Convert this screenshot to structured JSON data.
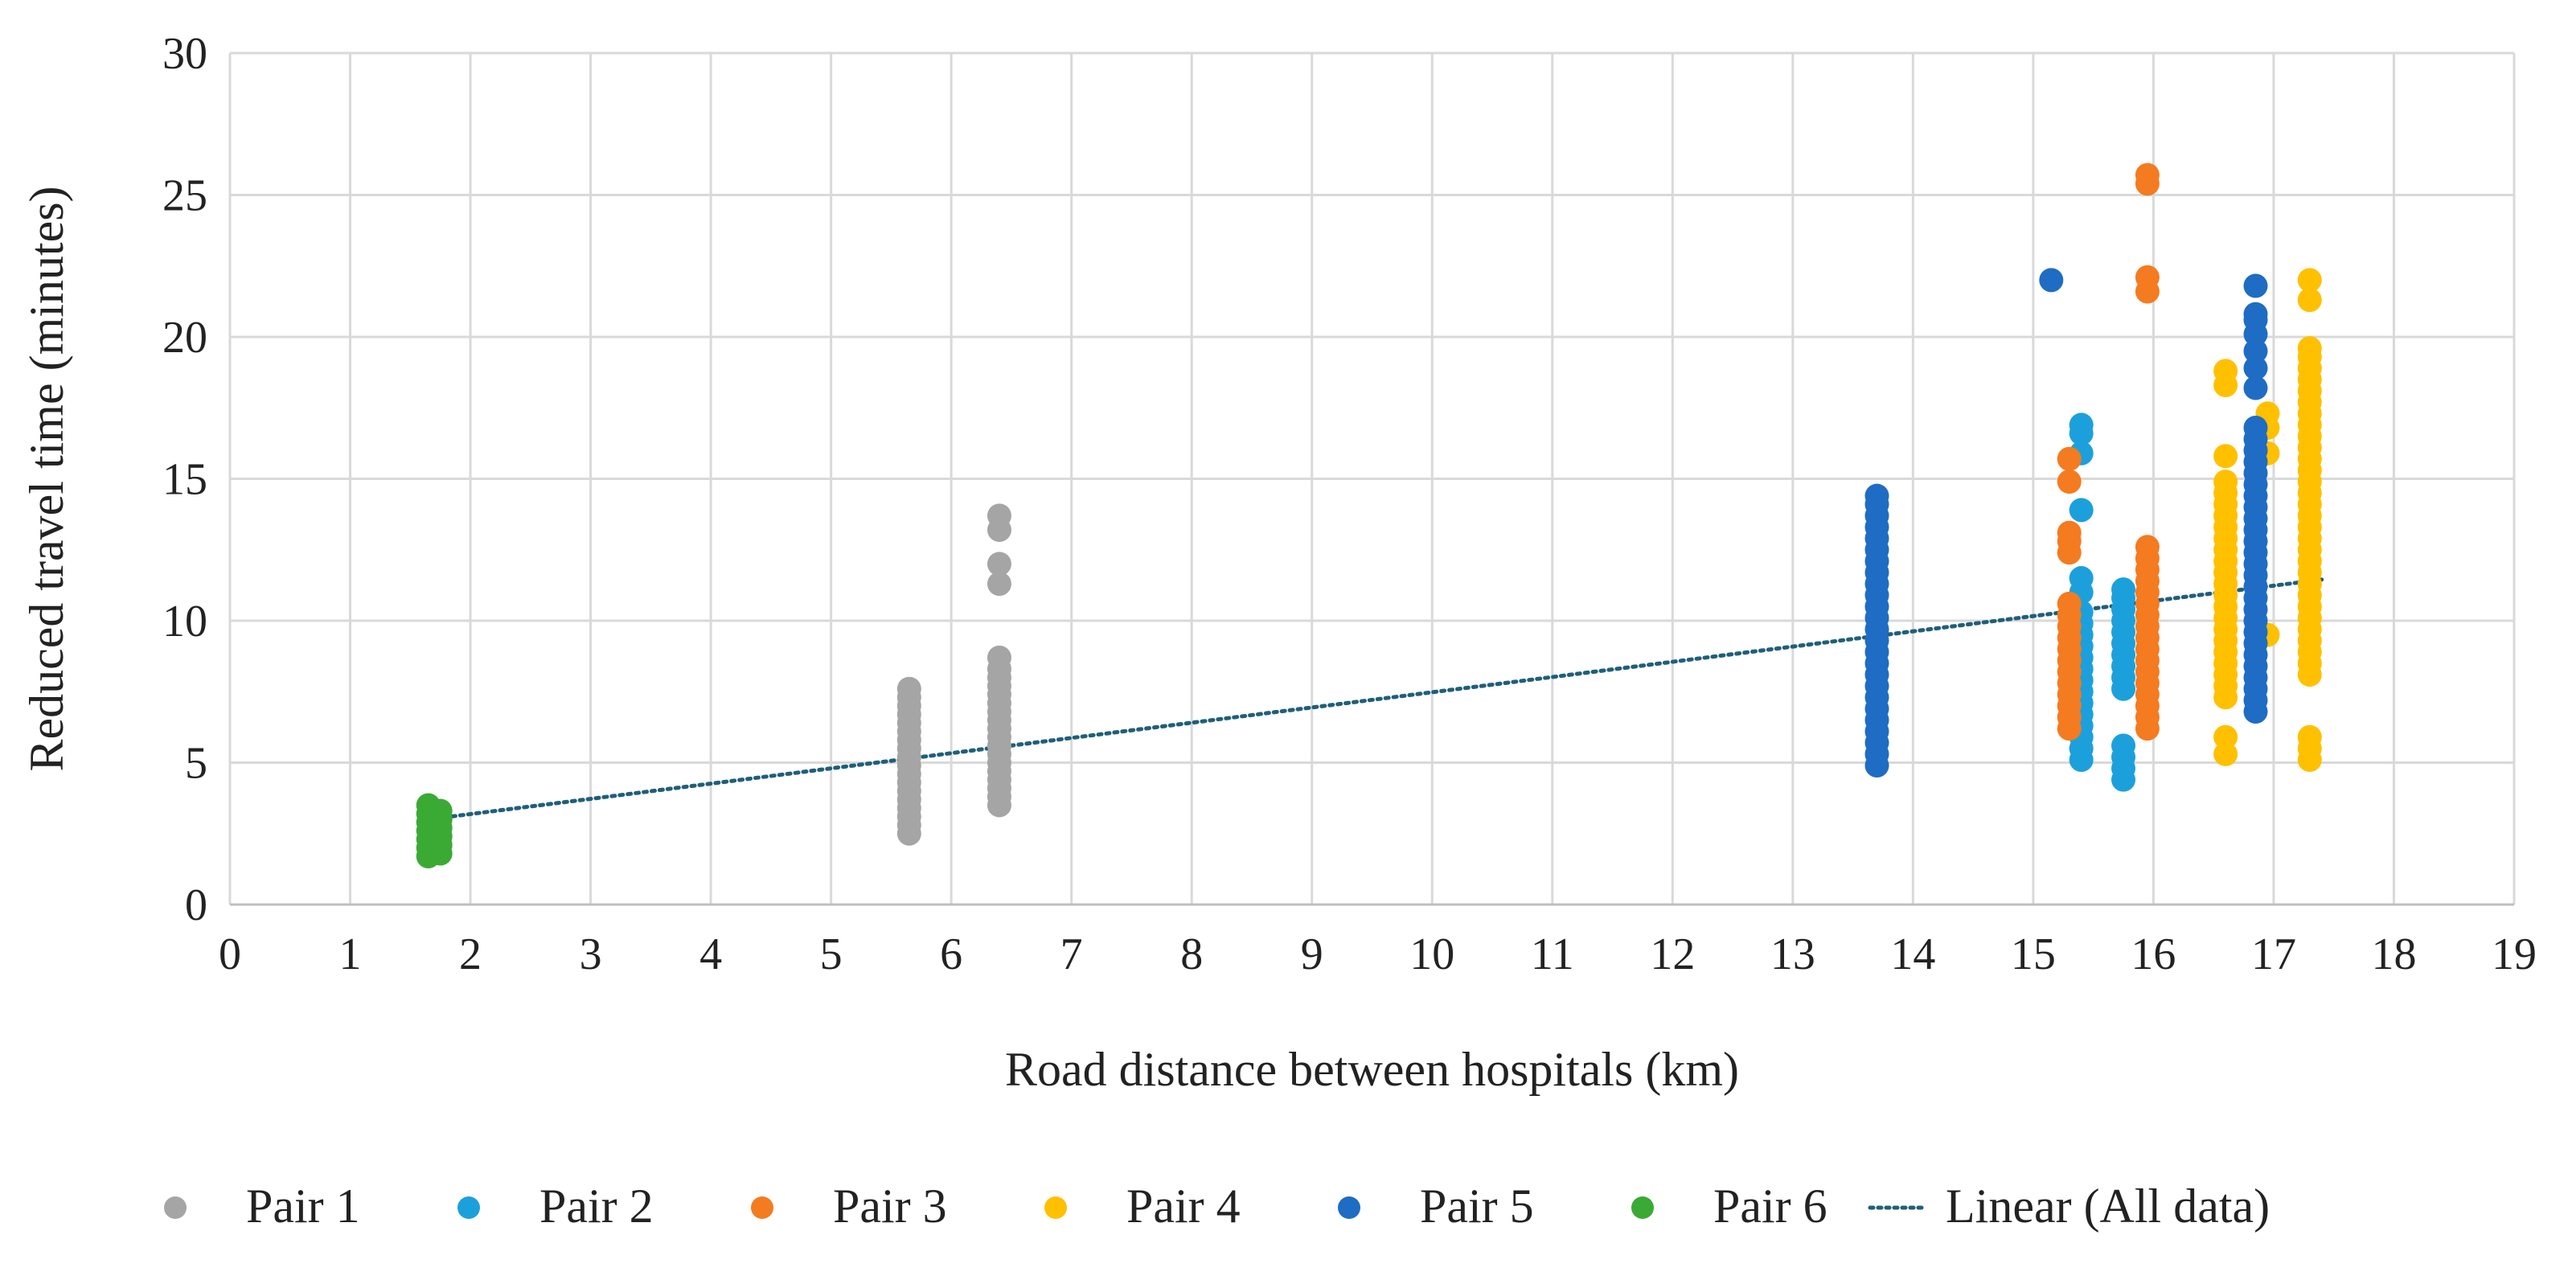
{
  "chart_data": {
    "type": "scatter",
    "title": "",
    "xlabel": "Road distance between hospitals (km)",
    "ylabel": "Reduced travel time (minutes)",
    "xlim": [
      0,
      19
    ],
    "ylim": [
      0,
      30
    ],
    "x_ticks": [
      0,
      1,
      2,
      3,
      4,
      5,
      6,
      7,
      8,
      9,
      10,
      11,
      12,
      13,
      14,
      15,
      16,
      17,
      18,
      19
    ],
    "y_ticks": [
      0,
      5,
      10,
      15,
      20,
      25,
      30
    ],
    "grid": true,
    "legend_position": "bottom",
    "series": [
      {
        "name": "Pair 1",
        "color": "#a5a5a5",
        "points": [
          [
            5.65,
            2.5
          ],
          [
            5.65,
            2.8
          ],
          [
            5.65,
            3.1
          ],
          [
            5.65,
            3.4
          ],
          [
            5.65,
            3.7
          ],
          [
            5.65,
            4.0
          ],
          [
            5.65,
            4.3
          ],
          [
            5.65,
            4.6
          ],
          [
            5.65,
            4.9
          ],
          [
            5.65,
            5.2
          ],
          [
            5.65,
            5.5
          ],
          [
            5.65,
            5.8
          ],
          [
            5.65,
            6.1
          ],
          [
            5.65,
            6.4
          ],
          [
            5.65,
            6.7
          ],
          [
            5.65,
            7.0
          ],
          [
            5.65,
            7.3
          ],
          [
            5.65,
            7.6
          ],
          [
            6.4,
            3.5
          ],
          [
            6.4,
            3.8
          ],
          [
            6.4,
            4.1
          ],
          [
            6.4,
            4.4
          ],
          [
            6.4,
            4.7
          ],
          [
            6.4,
            5.0
          ],
          [
            6.4,
            5.3
          ],
          [
            6.4,
            5.6
          ],
          [
            6.4,
            5.9
          ],
          [
            6.4,
            6.2
          ],
          [
            6.4,
            6.5
          ],
          [
            6.4,
            6.8
          ],
          [
            6.4,
            7.1
          ],
          [
            6.4,
            7.4
          ],
          [
            6.4,
            7.7
          ],
          [
            6.4,
            8.0
          ],
          [
            6.4,
            8.3
          ],
          [
            6.4,
            8.7
          ],
          [
            6.4,
            11.3
          ],
          [
            6.4,
            12.0
          ],
          [
            6.4,
            13.2
          ],
          [
            6.4,
            13.7
          ]
        ]
      },
      {
        "name": "Pair 2",
        "color": "#1ca0dc",
        "points": [
          [
            15.4,
            5.1
          ],
          [
            15.4,
            5.5
          ],
          [
            15.4,
            5.9
          ],
          [
            15.4,
            6.3
          ],
          [
            15.4,
            6.7
          ],
          [
            15.4,
            7.1
          ],
          [
            15.4,
            7.5
          ],
          [
            15.4,
            7.9
          ],
          [
            15.4,
            8.3
          ],
          [
            15.4,
            8.7
          ],
          [
            15.4,
            9.1
          ],
          [
            15.4,
            9.5
          ],
          [
            15.4,
            9.9
          ],
          [
            15.4,
            10.3
          ],
          [
            15.4,
            11.0
          ],
          [
            15.4,
            11.5
          ],
          [
            15.4,
            13.9
          ],
          [
            15.4,
            15.9
          ],
          [
            15.4,
            16.6
          ],
          [
            15.4,
            16.9
          ],
          [
            15.75,
            4.4
          ],
          [
            15.75,
            4.8
          ],
          [
            15.75,
            5.2
          ],
          [
            15.75,
            5.6
          ],
          [
            15.75,
            7.6
          ],
          [
            15.75,
            8.0
          ],
          [
            15.75,
            8.4
          ],
          [
            15.75,
            8.8
          ],
          [
            15.75,
            9.2
          ],
          [
            15.75,
            9.6
          ],
          [
            15.75,
            10.0
          ],
          [
            15.75,
            10.4
          ],
          [
            15.75,
            10.8
          ],
          [
            15.75,
            11.1
          ]
        ]
      },
      {
        "name": "Pair 3",
        "color": "#f47b20",
        "points": [
          [
            15.3,
            6.2
          ],
          [
            15.3,
            6.6
          ],
          [
            15.3,
            7.0
          ],
          [
            15.3,
            7.4
          ],
          [
            15.3,
            7.8
          ],
          [
            15.3,
            8.2
          ],
          [
            15.3,
            8.6
          ],
          [
            15.3,
            9.0
          ],
          [
            15.3,
            9.4
          ],
          [
            15.3,
            9.8
          ],
          [
            15.3,
            10.2
          ],
          [
            15.3,
            10.6
          ],
          [
            15.3,
            12.4
          ],
          [
            15.3,
            12.8
          ],
          [
            15.3,
            13.1
          ],
          [
            15.3,
            14.9
          ],
          [
            15.3,
            15.7
          ],
          [
            15.95,
            6.2
          ],
          [
            15.95,
            6.6
          ],
          [
            15.95,
            7.0
          ],
          [
            15.95,
            7.4
          ],
          [
            15.95,
            7.8
          ],
          [
            15.95,
            8.2
          ],
          [
            15.95,
            8.6
          ],
          [
            15.95,
            9.0
          ],
          [
            15.95,
            9.4
          ],
          [
            15.95,
            9.8
          ],
          [
            15.95,
            10.2
          ],
          [
            15.95,
            10.6
          ],
          [
            15.95,
            11.0
          ],
          [
            15.95,
            11.4
          ],
          [
            15.95,
            11.8
          ],
          [
            15.95,
            12.2
          ],
          [
            15.95,
            12.6
          ],
          [
            15.95,
            21.6
          ],
          [
            15.95,
            22.1
          ],
          [
            15.95,
            25.4
          ],
          [
            15.95,
            25.7
          ]
        ]
      },
      {
        "name": "Pair 4",
        "color": "#ffc000",
        "points": [
          [
            16.6,
            5.3
          ],
          [
            16.6,
            5.9
          ],
          [
            16.6,
            7.3
          ],
          [
            16.6,
            7.7
          ],
          [
            16.6,
            8.1
          ],
          [
            16.6,
            8.5
          ],
          [
            16.6,
            8.9
          ],
          [
            16.6,
            9.3
          ],
          [
            16.6,
            9.7
          ],
          [
            16.6,
            10.1
          ],
          [
            16.6,
            10.5
          ],
          [
            16.6,
            10.9
          ],
          [
            16.6,
            11.3
          ],
          [
            16.6,
            11.7
          ],
          [
            16.6,
            12.1
          ],
          [
            16.6,
            12.5
          ],
          [
            16.6,
            12.9
          ],
          [
            16.6,
            13.3
          ],
          [
            16.6,
            13.7
          ],
          [
            16.6,
            14.1
          ],
          [
            16.6,
            14.5
          ],
          [
            16.6,
            14.9
          ],
          [
            16.6,
            15.8
          ],
          [
            16.6,
            18.3
          ],
          [
            16.6,
            18.8
          ],
          [
            16.95,
            9.5
          ],
          [
            16.95,
            15.9
          ],
          [
            16.95,
            16.8
          ],
          [
            16.95,
            17.3
          ],
          [
            17.3,
            5.1
          ],
          [
            17.3,
            5.5
          ],
          [
            17.3,
            5.9
          ],
          [
            17.3,
            8.1
          ],
          [
            17.3,
            8.5
          ],
          [
            17.3,
            8.9
          ],
          [
            17.3,
            9.3
          ],
          [
            17.3,
            9.7
          ],
          [
            17.3,
            10.1
          ],
          [
            17.3,
            10.5
          ],
          [
            17.3,
            10.9
          ],
          [
            17.3,
            11.3
          ],
          [
            17.3,
            11.7
          ],
          [
            17.3,
            12.1
          ],
          [
            17.3,
            12.5
          ],
          [
            17.3,
            12.9
          ],
          [
            17.3,
            13.3
          ],
          [
            17.3,
            13.7
          ],
          [
            17.3,
            14.1
          ],
          [
            17.3,
            14.5
          ],
          [
            17.3,
            14.9
          ],
          [
            17.3,
            15.3
          ],
          [
            17.3,
            15.7
          ],
          [
            17.3,
            16.1
          ],
          [
            17.3,
            16.5
          ],
          [
            17.3,
            16.9
          ],
          [
            17.3,
            17.3
          ],
          [
            17.3,
            17.7
          ],
          [
            17.3,
            18.1
          ],
          [
            17.3,
            18.5
          ],
          [
            17.3,
            18.9
          ],
          [
            17.3,
            19.3
          ],
          [
            17.3,
            19.6
          ],
          [
            17.3,
            21.3
          ],
          [
            17.3,
            22.0
          ]
        ]
      },
      {
        "name": "Pair 5",
        "color": "#1f6cc4",
        "points": [
          [
            13.7,
            4.9
          ],
          [
            13.7,
            5.3
          ],
          [
            13.7,
            5.7
          ],
          [
            13.7,
            6.1
          ],
          [
            13.7,
            6.5
          ],
          [
            13.7,
            6.9
          ],
          [
            13.7,
            7.3
          ],
          [
            13.7,
            7.7
          ],
          [
            13.7,
            8.1
          ],
          [
            13.7,
            8.5
          ],
          [
            13.7,
            8.9
          ],
          [
            13.7,
            9.3
          ],
          [
            13.7,
            9.7
          ],
          [
            13.7,
            10.1
          ],
          [
            13.7,
            10.5
          ],
          [
            13.7,
            10.9
          ],
          [
            13.7,
            11.3
          ],
          [
            13.7,
            11.7
          ],
          [
            13.7,
            12.1
          ],
          [
            13.7,
            12.5
          ],
          [
            13.7,
            12.9
          ],
          [
            13.7,
            13.3
          ],
          [
            13.7,
            13.7
          ],
          [
            13.7,
            14.1
          ],
          [
            13.7,
            14.4
          ],
          [
            15.15,
            22.0
          ],
          [
            16.85,
            6.8
          ],
          [
            16.85,
            7.2
          ],
          [
            16.85,
            7.6
          ],
          [
            16.85,
            8.0
          ],
          [
            16.85,
            8.4
          ],
          [
            16.85,
            8.8
          ],
          [
            16.85,
            9.2
          ],
          [
            16.85,
            9.6
          ],
          [
            16.85,
            10.0
          ],
          [
            16.85,
            10.4
          ],
          [
            16.85,
            10.8
          ],
          [
            16.85,
            11.2
          ],
          [
            16.85,
            11.6
          ],
          [
            16.85,
            12.0
          ],
          [
            16.85,
            12.4
          ],
          [
            16.85,
            12.8
          ],
          [
            16.85,
            13.2
          ],
          [
            16.85,
            13.6
          ],
          [
            16.85,
            14.0
          ],
          [
            16.85,
            14.4
          ],
          [
            16.85,
            14.8
          ],
          [
            16.85,
            15.2
          ],
          [
            16.85,
            15.6
          ],
          [
            16.85,
            16.0
          ],
          [
            16.85,
            16.4
          ],
          [
            16.85,
            16.8
          ],
          [
            16.85,
            18.2
          ],
          [
            16.85,
            18.9
          ],
          [
            16.85,
            19.5
          ],
          [
            16.85,
            20.1
          ],
          [
            16.85,
            20.6
          ],
          [
            16.85,
            20.8
          ],
          [
            16.85,
            21.8
          ]
        ]
      },
      {
        "name": "Pair 6",
        "color": "#3aaa35",
        "points": [
          [
            1.65,
            1.7
          ],
          [
            1.65,
            2.0
          ],
          [
            1.65,
            2.3
          ],
          [
            1.65,
            2.6
          ],
          [
            1.65,
            2.9
          ],
          [
            1.65,
            3.2
          ],
          [
            1.65,
            3.5
          ],
          [
            1.75,
            1.8
          ],
          [
            1.75,
            2.1
          ],
          [
            1.75,
            2.4
          ],
          [
            1.75,
            2.7
          ],
          [
            1.75,
            3.0
          ],
          [
            1.75,
            3.3
          ]
        ]
      }
    ],
    "trendline": {
      "name": "Linear (All data)",
      "color": "#1f5f7a",
      "style": "dotted",
      "x": [
        1.65,
        17.4
      ],
      "y": [
        3.0,
        11.45
      ]
    }
  }
}
